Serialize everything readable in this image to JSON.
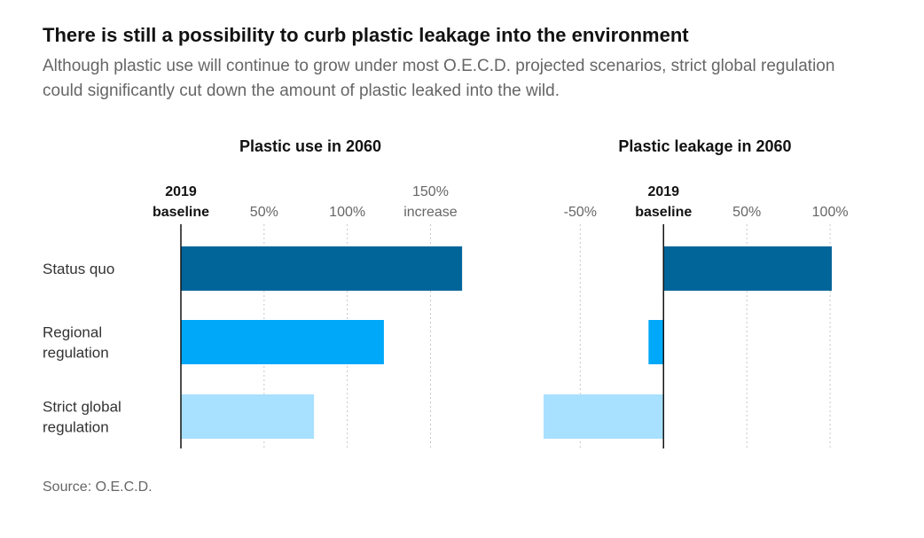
{
  "headline": "There is still a possibility to curb plastic leakage into the environment",
  "subhead": "Although plastic use will continue to grow under most O.E.C.D. projected scenarios, strict global regulation could significantly cut down the amount of plastic leaked into the wild.",
  "source": "Source: O.E.C.D.",
  "colors": {
    "status_quo": "#02659a",
    "regional": "#00a8f9",
    "strict_global": "#a8e0ff",
    "baseline": "#121212",
    "grid": "#c6c6c6",
    "tick": "#666666"
  },
  "chart_data": [
    {
      "type": "bar",
      "orientation": "horizontal",
      "title": "Plastic use in 2060",
      "unit": "% change vs 2019 baseline",
      "categories": [
        "Status quo",
        "Regional regulation",
        "Strict global regulation"
      ],
      "category_lines": [
        [
          "Status quo"
        ],
        [
          "Regional",
          "regulation"
        ],
        [
          "Strict global",
          "regulation"
        ]
      ],
      "values": [
        169,
        122,
        80
      ],
      "xlim": [
        0,
        170
      ],
      "baseline_label": [
        "2019",
        "baseline"
      ],
      "ticks": [
        {
          "value": 50,
          "lines": [
            "50%"
          ]
        },
        {
          "value": 100,
          "lines": [
            "100%"
          ]
        },
        {
          "value": 150,
          "lines": [
            "150%",
            "increase"
          ]
        }
      ],
      "grid": true
    },
    {
      "type": "bar",
      "orientation": "horizontal",
      "title": "Plastic leakage in 2060",
      "unit": "% change vs 2019 baseline",
      "categories": [
        "Status quo",
        "Regional regulation",
        "Strict global regulation"
      ],
      "values": [
        101,
        -9,
        -72
      ],
      "xlim": [
        -72,
        101
      ],
      "baseline_label": [
        "2019",
        "baseline"
      ],
      "ticks": [
        {
          "value": -50,
          "lines": [
            "-50%"
          ]
        },
        {
          "value": 50,
          "lines": [
            "50%"
          ]
        },
        {
          "value": 100,
          "lines": [
            "100%"
          ]
        }
      ],
      "grid": true
    }
  ]
}
